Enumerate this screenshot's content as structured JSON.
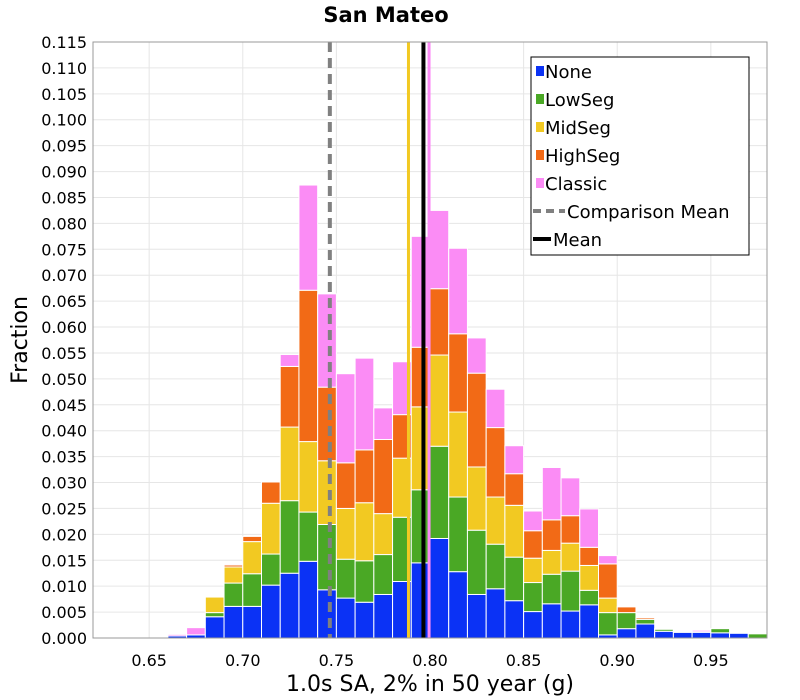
{
  "chart_data": {
    "type": "bar",
    "stacked": true,
    "title": "San Mateo",
    "xlabel": "1.0s SA, 2% in 50 year (g)",
    "ylabel": "Fraction",
    "xlim": [
      0.62,
      0.98
    ],
    "ylim": [
      0,
      0.115
    ],
    "bin_width": 0.01,
    "xticks": [
      "0.65",
      "0.70",
      "0.75",
      "0.80",
      "0.85",
      "0.90",
      "0.95"
    ],
    "yticks": [
      "0.000",
      "0.005",
      "0.010",
      "0.015",
      "0.020",
      "0.025",
      "0.030",
      "0.035",
      "0.040",
      "0.045",
      "0.050",
      "0.055",
      "0.060",
      "0.065",
      "0.070",
      "0.075",
      "0.080",
      "0.085",
      "0.090",
      "0.095",
      "0.100",
      "0.105",
      "0.110",
      "0.115"
    ],
    "grid": true,
    "legend_position": "top-right",
    "bins": [
      0.665,
      0.675,
      0.685,
      0.695,
      0.705,
      0.715,
      0.725,
      0.735,
      0.745,
      0.755,
      0.765,
      0.775,
      0.785,
      0.795,
      0.805,
      0.815,
      0.825,
      0.835,
      0.845,
      0.855,
      0.865,
      0.875,
      0.885,
      0.895,
      0.905,
      0.915,
      0.925,
      0.935,
      0.945,
      0.955,
      0.965,
      0.975
    ],
    "series": [
      {
        "name": "None",
        "color": "#0b32f5",
        "values": [
          0.0004,
          0.0006,
          0.0041,
          0.0061,
          0.0061,
          0.0102,
          0.0125,
          0.0148,
          0.0093,
          0.0077,
          0.0069,
          0.0084,
          0.0109,
          0.0145,
          0.0192,
          0.0128,
          0.0084,
          0.0095,
          0.0072,
          0.0051,
          0.0066,
          0.0052,
          0.0064,
          0.0006,
          0.0018,
          0.0027,
          0.0013,
          0.0011,
          0.0011,
          0.001,
          0.0009,
          0.0
        ]
      },
      {
        "name": "LowSeg",
        "color": "#4aa825",
        "values": [
          0,
          0,
          0.0008,
          0.0045,
          0.0063,
          0.006,
          0.014,
          0.0095,
          0.0126,
          0.0075,
          0.008,
          0.0077,
          0.0124,
          0.0141,
          0.0178,
          0.0144,
          0.0124,
          0.0086,
          0.0084,
          0.0056,
          0.0057,
          0.0077,
          0.0028,
          0.0043,
          0.0031,
          0.0009,
          0.0004,
          0.0002,
          0.0001,
          0.0008,
          0,
          0.0008
        ]
      },
      {
        "name": "MidSeg",
        "color": "#f2c922",
        "values": [
          0,
          0,
          0.003,
          0.0031,
          0.0062,
          0.0098,
          0.0142,
          0.0136,
          0.0123,
          0.0098,
          0.0112,
          0.0079,
          0.0114,
          0.016,
          0.0176,
          0.0164,
          0.0122,
          0.0091,
          0.01,
          0.0047,
          0.0046,
          0.0054,
          0.0048,
          0.0028,
          0,
          0,
          0,
          0,
          0,
          0,
          0,
          0
        ]
      },
      {
        "name": "HighSeg",
        "color": "#f26a16",
        "values": [
          0,
          0,
          0,
          0.0004,
          0.001,
          0.0041,
          0.0117,
          0.0292,
          0.0142,
          0.0088,
          0.0102,
          0.0143,
          0.0084,
          0.0115,
          0.0128,
          0.0151,
          0.0181,
          0.0134,
          0.0061,
          0.0053,
          0.0059,
          0.0053,
          0.0035,
          0.0066,
          0.0011,
          0.0003,
          0,
          0,
          0,
          0,
          0,
          0
        ]
      },
      {
        "name": "Classic",
        "color": "#fb8cf5",
        "values": [
          0.0003,
          0.0014,
          0,
          0.0002,
          0,
          0,
          0.0023,
          0.0203,
          0.018,
          0.0172,
          0.0177,
          0.0061,
          0.0102,
          0.0214,
          0.0151,
          0.0165,
          0.0068,
          0.0074,
          0.0054,
          0.0038,
          0.0101,
          0.0073,
          0.0074,
          0.0016,
          0,
          0,
          0.0001,
          0.0002,
          0.0003,
          0,
          0,
          0
        ]
      }
    ],
    "lines": [
      {
        "name": "Comparison Mean",
        "x": 0.7465,
        "color": "#808080",
        "style": "dashed"
      },
      {
        "name": "Mean",
        "x": 0.7965,
        "color": "#000000",
        "style": "solid"
      }
    ],
    "extra_lines": [
      {
        "x": 0.7885,
        "color": "#f2c922"
      },
      {
        "x": 0.7995,
        "color": "#fb8cf5"
      }
    ]
  }
}
